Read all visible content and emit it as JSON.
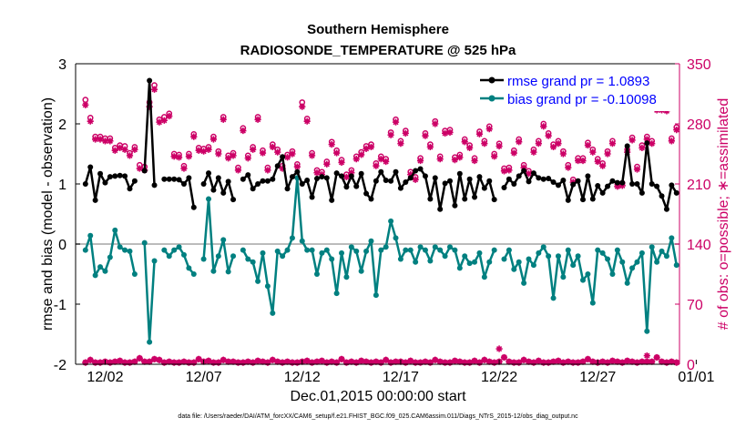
{
  "chart_data": {
    "type": "line",
    "title": "Southern Hemisphere",
    "subtitle": "RADIOSONDE_TEMPERATURE @ 525 hPa",
    "xlabel": "Dec.01,2015 00:00:00 start",
    "ylabel": "rmse and bias (model - observation)",
    "ylabel_right": "# of obs: o=possible; ∗=assimilated",
    "footnote": "data file: /Users/raeder/DAI/ATM_forcXX/CAM6_setup/f.e21.FHIST_BGC.f09_025.CAM6assim.011/Diags_NTrS_2015-12/obs_diag_output.nc",
    "xlim": [
      0.5,
      31.15
    ],
    "ylim": [
      -2,
      3
    ],
    "ylim_right": [
      0,
      350
    ],
    "x_ticks": [
      2,
      7,
      12,
      17,
      22,
      27,
      32
    ],
    "x_tick_labels": [
      "12/02",
      "12/07",
      "12/12",
      "12/17",
      "12/22",
      "12/27",
      "01/01"
    ],
    "y_ticks": [
      -2,
      -1,
      0,
      1,
      2,
      3
    ],
    "y_ticks_right": [
      0,
      70,
      140,
      210,
      280,
      350
    ],
    "colors": {
      "rmse": "#000000",
      "bias": "#008080",
      "obs": "#cc0066",
      "zero_line": "#bbbbbb"
    },
    "legend": [
      {
        "name": "rmse",
        "label": "rmse grand pr = 1.0893"
      },
      {
        "name": "bias",
        "label": "bias grand pr = -0.10098"
      }
    ],
    "x": [
      1.0,
      1.25,
      1.5,
      1.75,
      2.0,
      2.25,
      2.5,
      2.75,
      3.0,
      3.25,
      3.5,
      3.75,
      4.0,
      4.25,
      4.5,
      4.75,
      5.0,
      5.25,
      5.5,
      5.75,
      6.0,
      6.25,
      6.5,
      6.75,
      7.0,
      7.25,
      7.5,
      7.75,
      8.0,
      8.25,
      8.5,
      8.75,
      9.0,
      9.25,
      9.5,
      9.75,
      10.0,
      10.25,
      10.5,
      10.75,
      11.0,
      11.25,
      11.5,
      11.75,
      12.0,
      12.25,
      12.5,
      12.75,
      13.0,
      13.25,
      13.5,
      13.75,
      14.0,
      14.25,
      14.5,
      14.75,
      15.0,
      15.25,
      15.5,
      15.75,
      16.0,
      16.25,
      16.5,
      16.75,
      17.0,
      17.25,
      17.5,
      17.75,
      18.0,
      18.25,
      18.5,
      18.75,
      19.0,
      19.25,
      19.5,
      19.75,
      20.0,
      20.25,
      20.5,
      20.75,
      21.0,
      21.25,
      21.5,
      21.75,
      22.0,
      22.25,
      22.5,
      22.75,
      23.0,
      23.25,
      23.5,
      23.75,
      24.0,
      24.25,
      24.5,
      24.75,
      25.0,
      25.25,
      25.5,
      25.75,
      26.0,
      26.25,
      26.5,
      26.75,
      27.0,
      27.25,
      27.5,
      27.75,
      28.0,
      28.25,
      28.5,
      28.75,
      29.0,
      29.25,
      29.5,
      29.75,
      30.0,
      30.25,
      30.5,
      30.75,
      31.0
    ],
    "series": [
      {
        "name": "rmse",
        "values": [
          1.0,
          1.28,
          0.73,
          1.17,
          1.02,
          1.12,
          1.13,
          1.14,
          1.13,
          0.92,
          1.05,
          null,
          1.22,
          2.72,
          0.98,
          null,
          1.08,
          1.08,
          1.08,
          1.07,
          1.0,
          1.1,
          0.61,
          null,
          1.0,
          1.18,
          0.9,
          1.1,
          0.85,
          1.04,
          0.74,
          null,
          1.08,
          1.15,
          0.92,
          1.0,
          1.05,
          1.05,
          1.08,
          1.3,
          1.45,
          0.92,
          1.12,
          1.2,
          1.0,
          1.06,
          0.78,
          1.09,
          1.12,
          1.1,
          0.73,
          1.18,
          1.13,
          0.95,
          1.13,
          0.96,
          1.17,
          0.84,
          0.75,
          1.05,
          1.2,
          1.06,
          1.05,
          1.2,
          0.93,
          1.03,
          1.1,
          1.22,
          1.25,
          1.13,
          0.75,
          1.1,
          0.58,
          1.01,
          1.05,
          0.64,
          1.17,
          0.75,
          1.08,
          0.78,
          1.12,
          0.93,
          1.05,
          0.74,
          null,
          0.94,
          1.08,
          1.0,
          1.13,
          1.22,
          1.04,
          1.18,
          1.1,
          1.08,
          1.09,
          1.03,
          0.98,
          1.06,
          0.73,
          0.99,
          1.05,
          0.74,
          1.13,
          0.75,
          0.97,
          0.85,
          0.96,
          1.05,
          1.02,
          1.02,
          1.63,
          1.0,
          1.0,
          0.85,
          1.68,
          1.0,
          0.96,
          0.8,
          0.58,
          0.98,
          0.85
        ]
      },
      {
        "name": "bias",
        "values": [
          -0.1,
          0.14,
          -0.52,
          -0.38,
          -0.45,
          -0.22,
          0.23,
          -0.05,
          -0.1,
          -0.12,
          -0.5,
          null,
          0.02,
          -1.63,
          -0.28,
          null,
          -0.1,
          -0.2,
          -0.1,
          -0.05,
          -0.18,
          -0.4,
          -0.5,
          null,
          -0.25,
          0.75,
          -0.45,
          -0.2,
          0.07,
          -0.46,
          -0.2,
          null,
          -0.1,
          -0.25,
          -0.3,
          -0.62,
          -0.15,
          -0.7,
          -1.15,
          -0.12,
          -0.2,
          -0.1,
          0.1,
          1.1,
          0.05,
          -0.1,
          -0.1,
          -0.5,
          -0.15,
          -0.1,
          -0.25,
          -0.82,
          -0.15,
          -0.55,
          -0.05,
          -0.12,
          -0.45,
          -0.12,
          0.05,
          -0.85,
          -0.1,
          -0.05,
          0.38,
          0.1,
          -0.25,
          -0.1,
          -0.1,
          -0.3,
          -0.05,
          -0.1,
          -0.28,
          -0.05,
          -0.1,
          -0.2,
          -0.05,
          -0.1,
          -0.4,
          -0.2,
          -0.32,
          -0.3,
          -0.15,
          -0.55,
          -0.3,
          -0.1,
          null,
          -0.25,
          -0.1,
          -0.42,
          -0.3,
          -0.65,
          -0.25,
          -0.35,
          -0.15,
          -0.05,
          -0.2,
          -0.9,
          -0.2,
          -0.55,
          -0.1,
          -0.35,
          -0.2,
          -0.6,
          -0.5,
          -0.98,
          -0.1,
          -0.15,
          -0.25,
          -0.5,
          -0.1,
          -0.3,
          -0.65,
          -0.4,
          -0.3,
          -0.15,
          -1.45,
          -0.05,
          -0.3,
          -0.12,
          -0.2,
          0.1,
          -0.35
        ]
      },
      {
        "name": "obs_possible",
        "values": [
          308,
          287,
          265,
          265,
          263,
          263,
          252,
          255,
          254,
          246,
          253,
          232,
          230,
          305,
          325,
          285,
          288,
          292,
          245,
          244,
          231,
          245,
          268,
          252,
          251,
          253,
          265,
          248,
          288,
          243,
          246,
          229,
          275,
          243,
          253,
          288,
          249,
          229,
          256,
          250,
          231,
          244,
          248,
          233,
          305,
          286,
          246,
          226,
          224,
          236,
          259,
          249,
          238,
          221,
          226,
          242,
          247,
          254,
          256,
          234,
          242,
          239,
          270,
          285,
          260,
          272,
          224,
          218,
          240,
          269,
          256,
          283,
          242,
          272,
          273,
          241,
          244,
          262,
          255,
          240,
          271,
          260,
          277,
          245,
          257,
          228,
          229,
          249,
          262,
          232,
          225,
          250,
          260,
          280,
          269,
          256,
          260,
          248,
          232,
          215,
          240,
          240,
          258,
          250,
          239,
          234,
          248,
          260,
          210,
          211,
          250,
          264,
          230,
          255,
          265,
          260,
          300,
          300,
          298,
          263,
          276
        ]
      },
      {
        "name": "obs_assimilated",
        "values": [
          302,
          283,
          262,
          262,
          260,
          260,
          249,
          252,
          250,
          243,
          250,
          228,
          226,
          300,
          320,
          282,
          284,
          289,
          242,
          241,
          228,
          242,
          265,
          249,
          248,
          250,
          262,
          245,
          285,
          240,
          243,
          226,
          272,
          240,
          250,
          285,
          246,
          226,
          253,
          247,
          228,
          241,
          245,
          230,
          300,
          283,
          243,
          223,
          221,
          233,
          256,
          246,
          235,
          218,
          223,
          239,
          244,
          251,
          253,
          231,
          239,
          236,
          267,
          282,
          257,
          269,
          221,
          215,
          237,
          266,
          253,
          280,
          239,
          269,
          270,
          238,
          241,
          259,
          252,
          237,
          268,
          257,
          274,
          242,
          254,
          225,
          226,
          246,
          259,
          229,
          222,
          247,
          257,
          277,
          266,
          253,
          257,
          245,
          229,
          212,
          237,
          237,
          255,
          247,
          236,
          231,
          245,
          257,
          207,
          208,
          247,
          261,
          227,
          252,
          262,
          257,
          296,
          296,
          295,
          260,
          273
        ]
      },
      {
        "name": "obs_zero_line",
        "values": [
          2,
          5,
          2,
          2,
          3,
          2,
          3,
          4,
          2,
          2,
          3,
          7,
          3,
          3,
          6,
          5,
          2,
          3,
          2,
          2,
          3,
          2,
          2,
          6,
          3,
          4,
          2,
          2,
          5,
          3,
          3,
          2,
          2,
          3,
          2,
          4,
          3,
          2,
          5,
          3,
          2,
          3,
          2,
          2,
          3,
          4,
          2,
          3,
          4,
          2,
          3,
          2,
          6,
          2,
          3,
          2,
          4,
          3,
          2,
          3,
          2,
          5,
          2,
          3,
          3,
          2,
          4,
          2,
          2,
          3,
          2,
          5,
          3,
          2,
          2,
          4,
          3,
          2,
          2,
          4,
          2,
          5,
          3,
          2,
          3,
          8,
          3,
          2,
          2,
          5,
          3,
          2,
          4,
          2,
          2,
          3,
          4,
          2,
          3,
          2,
          2,
          3,
          6,
          3,
          2,
          3,
          2,
          4,
          3,
          2,
          4,
          3,
          2,
          3,
          3,
          3,
          8,
          3,
          2,
          3,
          2
        ]
      },
      {
        "name": "obs_elevated",
        "values": [
          null,
          null,
          null,
          null,
          null,
          null,
          null,
          null,
          null,
          null,
          null,
          null,
          null,
          null,
          null,
          null,
          null,
          null,
          null,
          null,
          null,
          null,
          null,
          null,
          null,
          null,
          null,
          null,
          null,
          null,
          null,
          null,
          null,
          null,
          null,
          null,
          null,
          null,
          null,
          null,
          null,
          null,
          null,
          null,
          null,
          null,
          null,
          null,
          null,
          null,
          null,
          null,
          null,
          null,
          null,
          null,
          null,
          null,
          null,
          null,
          null,
          null,
          null,
          null,
          null,
          null,
          null,
          null,
          null,
          null,
          null,
          null,
          null,
          null,
          null,
          null,
          null,
          null,
          null,
          null,
          null,
          null,
          null,
          null,
          18,
          null,
          null,
          null,
          null,
          null,
          null,
          null,
          null,
          null,
          null,
          null,
          null,
          null,
          null,
          null,
          null,
          null,
          null,
          null,
          null,
          null,
          null,
          null,
          null,
          null,
          null,
          null,
          null,
          null,
          10,
          null,
          null,
          null,
          null,
          null,
          null
        ]
      }
    ]
  }
}
